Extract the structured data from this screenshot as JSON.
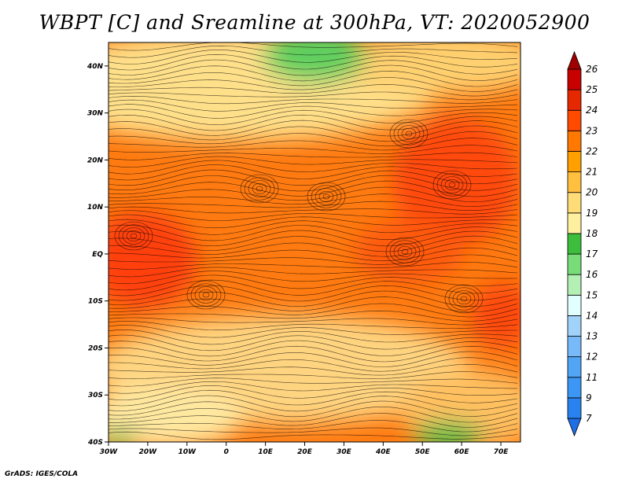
{
  "title": "WBPT [C] and Sreamline at 300hPa, VT: 2020052900",
  "credit": "GrADS: IGES/COLA",
  "map": {
    "lon_range": [
      -30,
      75
    ],
    "lat_range": [
      -40,
      45
    ],
    "lon_ticks": [
      "30W",
      "20W",
      "10W",
      "0",
      "10E",
      "20E",
      "30E",
      "40E",
      "50E",
      "60E",
      "70E"
    ],
    "lat_ticks": [
      "40S",
      "30S",
      "20S",
      "10S",
      "EQ",
      "10N",
      "20N",
      "30N",
      "40N"
    ]
  },
  "colorbar": {
    "labels": [
      "7",
      "9",
      "11",
      "12",
      "13",
      "14",
      "15",
      "16",
      "17",
      "18",
      "19",
      "20",
      "21",
      "22",
      "23",
      "24",
      "25",
      "26"
    ],
    "colors": [
      "#1e6ee6",
      "#2882f0",
      "#3c96f5",
      "#50a5f5",
      "#78b9fa",
      "#a0d2fa",
      "#e1ffff",
      "#b4f0b4",
      "#78dc78",
      "#3cbe3c",
      "#fff0a0",
      "#ffdc78",
      "#ffc040",
      "#ffa000",
      "#ff7800",
      "#ff4a00",
      "#e62800",
      "#c80000",
      "#a00000"
    ]
  }
}
